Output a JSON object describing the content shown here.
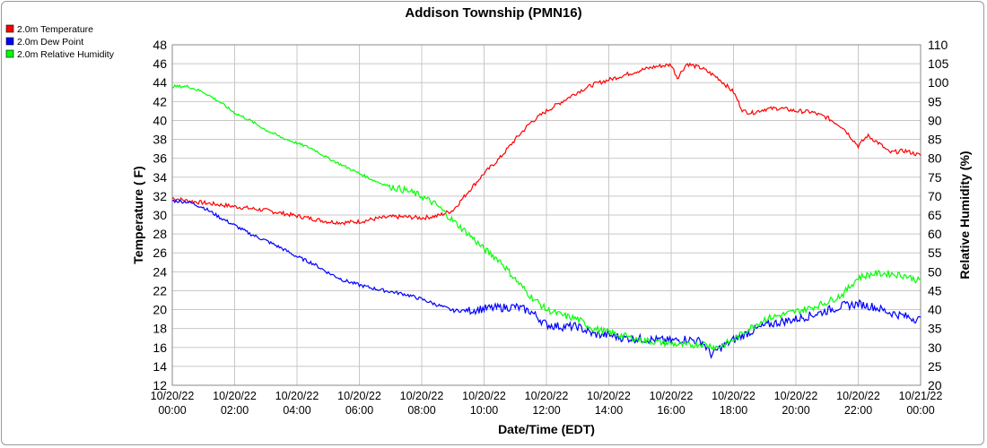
{
  "chart_data": {
    "type": "line",
    "title": "Addison Township (PMN16)",
    "xlabel": "Date/Time (EDT)",
    "ylabel_left": "Temperature ( F)",
    "ylabel_right": "Relative Humidity (%)",
    "ylim_left": [
      12,
      48
    ],
    "ylim_right": [
      20,
      110
    ],
    "y_ticks_left": [
      12,
      14,
      16,
      18,
      20,
      22,
      24,
      26,
      28,
      30,
      32,
      34,
      36,
      38,
      40,
      42,
      44,
      46,
      48
    ],
    "y_ticks_right": [
      20,
      25,
      30,
      35,
      40,
      45,
      50,
      55,
      60,
      65,
      70,
      75,
      80,
      85,
      90,
      95,
      100,
      105,
      110
    ],
    "x_ticks": [
      {
        "date": "10/20/22",
        "time": "00:00"
      },
      {
        "date": "10/20/22",
        "time": "02:00"
      },
      {
        "date": "10/20/22",
        "time": "04:00"
      },
      {
        "date": "10/20/22",
        "time": "06:00"
      },
      {
        "date": "10/20/22",
        "time": "08:00"
      },
      {
        "date": "10/20/22",
        "time": "10:00"
      },
      {
        "date": "10/20/22",
        "time": "12:00"
      },
      {
        "date": "10/20/22",
        "time": "14:00"
      },
      {
        "date": "10/20/22",
        "time": "16:00"
      },
      {
        "date": "10/20/22",
        "time": "18:00"
      },
      {
        "date": "10/20/22",
        "time": "20:00"
      },
      {
        "date": "10/20/22",
        "time": "22:00"
      },
      {
        "date": "10/21/22",
        "time": "00:00"
      }
    ],
    "x_unit": "hours since 10/20/22 00:00",
    "grid": true,
    "legend_position": "top-left",
    "series": [
      {
        "name": "2.0m Temperature",
        "color": "#ff0000",
        "axis": "left",
        "x": [
          0,
          0.5,
          1,
          1.5,
          2,
          2.5,
          3,
          3.5,
          4,
          4.5,
          5,
          5.5,
          6,
          6.5,
          7,
          7.5,
          8,
          8.5,
          9,
          9.5,
          10,
          10.5,
          11,
          11.5,
          12,
          12.5,
          13,
          13.5,
          14,
          14.5,
          15,
          15.5,
          16,
          16.2,
          16.5,
          17,
          17.5,
          18,
          18.3,
          18.6,
          19,
          19.5,
          20,
          20.5,
          21,
          21.5,
          22,
          22.3,
          22.7,
          23,
          23.5,
          24
        ],
        "y": [
          31.8,
          31.5,
          31.3,
          31.1,
          30.9,
          30.7,
          30.5,
          30.2,
          29.9,
          29.6,
          29.3,
          29.2,
          29.3,
          29.6,
          29.8,
          29.8,
          29.7,
          29.9,
          30.5,
          32.5,
          34.4,
          36.0,
          38.0,
          39.8,
          41.0,
          42.0,
          43.0,
          43.8,
          44.3,
          44.8,
          45.3,
          45.7,
          45.9,
          44.5,
          46.0,
          45.5,
          44.5,
          43.0,
          41.0,
          40.8,
          41.2,
          41.3,
          41.0,
          40.9,
          40.3,
          39.3,
          37.3,
          38.4,
          37.5,
          36.6,
          36.8,
          36.3
        ]
      },
      {
        "name": "2.0m Dew Point",
        "color": "#0000ff",
        "axis": "left",
        "x": [
          0,
          0.5,
          1,
          1.5,
          2,
          2.5,
          3,
          3.5,
          4,
          4.5,
          5,
          5.5,
          6,
          6.5,
          7,
          7.5,
          8,
          8.5,
          9,
          9.5,
          10,
          10.5,
          11,
          11.5,
          12,
          12.5,
          13,
          13.5,
          14,
          14.5,
          15,
          15.5,
          16,
          16.5,
          17,
          17.3,
          17.5,
          18,
          18.5,
          19,
          19.5,
          20,
          20.5,
          21,
          21.5,
          22,
          22.5,
          23,
          23.5,
          24
        ],
        "y": [
          31.5,
          31.4,
          30.8,
          29.8,
          28.9,
          28.0,
          27.3,
          26.5,
          25.6,
          24.9,
          23.9,
          23.1,
          22.6,
          22.2,
          21.9,
          21.6,
          21.1,
          20.5,
          19.9,
          19.9,
          20.1,
          20.2,
          20.3,
          19.8,
          18.4,
          18.2,
          18.2,
          17.4,
          17.3,
          17.0,
          16.9,
          16.8,
          16.7,
          16.9,
          16.6,
          15.2,
          15.8,
          16.8,
          17.6,
          18.3,
          18.7,
          19.0,
          19.4,
          19.9,
          20.4,
          20.6,
          20.3,
          19.7,
          19.3,
          18.9
        ]
      },
      {
        "name": "2.0m Relative Humidity",
        "color": "#00ff00",
        "axis": "right",
        "x": [
          0,
          0.5,
          1,
          1.5,
          2,
          2.5,
          3,
          3.5,
          4,
          4.5,
          5,
          5.5,
          6,
          6.5,
          7,
          7.5,
          8,
          8.5,
          9,
          9.5,
          10,
          10.5,
          11,
          11.5,
          12,
          12.5,
          13,
          13.5,
          14,
          14.5,
          15,
          15.5,
          16,
          16.5,
          17,
          17.5,
          18,
          18.5,
          19,
          19.5,
          20,
          20.5,
          21,
          21.5,
          22,
          22.5,
          23,
          23.5,
          24
        ],
        "y": [
          99,
          99,
          97.5,
          95,
          92,
          90,
          87.5,
          85.5,
          84,
          82.5,
          80,
          78,
          76,
          74,
          72.5,
          71.5,
          70,
          67.5,
          63.5,
          60,
          56,
          53,
          48,
          43.5,
          40,
          38.5,
          37.5,
          35,
          34,
          33,
          32,
          31.5,
          31,
          30.5,
          31,
          30,
          32,
          35,
          37.5,
          38.5,
          39.5,
          40.5,
          42,
          44,
          48.5,
          49.5,
          49.5,
          49,
          47.5
        ]
      }
    ]
  }
}
